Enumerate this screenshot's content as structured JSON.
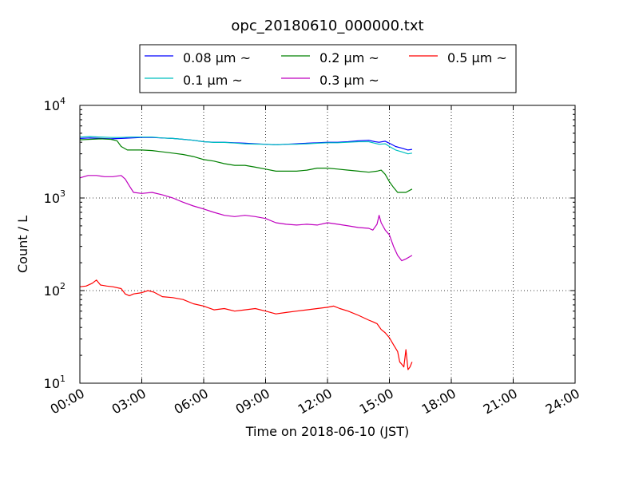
{
  "chart_data": {
    "type": "line",
    "title": "opc_20180610_000000.txt",
    "xlabel": "Time on 2018-06-10 (JST)",
    "ylabel": "Count / L",
    "x_unit": "hours",
    "xlim": [
      0,
      24
    ],
    "ylim": [
      10,
      10000
    ],
    "y_scale": "log",
    "grid": true,
    "legend_position": "top-center, above plot",
    "x_tick_labels": [
      "00:00",
      "03:00",
      "06:00",
      "09:00",
      "12:00",
      "15:00",
      "18:00",
      "21:00",
      "24:00"
    ],
    "y_tick_labels": [
      {
        "base": "10",
        "exp": "1"
      },
      {
        "base": "10",
        "exp": "2"
      },
      {
        "base": "10",
        "exp": "3"
      },
      {
        "base": "10",
        "exp": "4"
      }
    ],
    "series": [
      {
        "name": "0.08 μm ~",
        "color": "#0000ff",
        "x": [
          0.0,
          0.5,
          1.0,
          1.5,
          2.0,
          2.5,
          3.0,
          3.5,
          4.0,
          4.5,
          5.0,
          5.5,
          6.0,
          6.5,
          7.0,
          7.5,
          8.0,
          8.5,
          9.0,
          9.5,
          10.0,
          10.5,
          11.0,
          11.5,
          12.0,
          12.5,
          13.0,
          13.5,
          14.0,
          14.3,
          14.5,
          14.8,
          15.0,
          15.3,
          15.6,
          15.9,
          16.1
        ],
        "y": [
          4400,
          4450,
          4400,
          4350,
          4400,
          4450,
          4500,
          4500,
          4450,
          4400,
          4300,
          4200,
          4050,
          4000,
          4000,
          3950,
          3900,
          3850,
          3800,
          3750,
          3800,
          3850,
          3900,
          3950,
          4000,
          4000,
          4050,
          4150,
          4200,
          4050,
          4000,
          4100,
          3900,
          3600,
          3450,
          3300,
          3350
        ]
      },
      {
        "name": "0.1 μm ~",
        "color": "#00bfbf",
        "x": [
          0.0,
          0.5,
          1.0,
          1.5,
          2.0,
          2.5,
          3.0,
          3.5,
          4.0,
          4.5,
          5.0,
          5.5,
          6.0,
          6.5,
          7.0,
          7.5,
          8.0,
          8.5,
          9.0,
          9.5,
          10.0,
          10.5,
          11.0,
          11.5,
          12.0,
          12.5,
          13.0,
          13.5,
          14.0,
          14.3,
          14.5,
          14.8,
          15.0,
          15.3,
          15.6,
          15.9,
          16.1
        ],
        "y": [
          4550,
          4600,
          4550,
          4500,
          4500,
          4550,
          4550,
          4550,
          4450,
          4400,
          4300,
          4200,
          4050,
          3980,
          3980,
          3920,
          3850,
          3820,
          3800,
          3750,
          3800,
          3800,
          3850,
          3900,
          3950,
          3950,
          4000,
          4050,
          4050,
          3900,
          3800,
          3850,
          3600,
          3300,
          3150,
          3000,
          3050
        ]
      },
      {
        "name": "0.2 μm ~",
        "color": "#008000",
        "x": [
          0.0,
          0.5,
          1.0,
          1.5,
          1.8,
          2.0,
          2.3,
          2.6,
          3.0,
          3.5,
          4.0,
          4.5,
          5.0,
          5.5,
          6.0,
          6.5,
          7.0,
          7.5,
          8.0,
          8.5,
          9.0,
          9.5,
          10.0,
          10.5,
          11.0,
          11.5,
          12.0,
          12.5,
          13.0,
          13.5,
          14.0,
          14.4,
          14.6,
          14.8,
          15.0,
          15.2,
          15.4,
          15.6,
          15.8,
          16.1
        ],
        "y": [
          4250,
          4300,
          4350,
          4300,
          4150,
          3600,
          3300,
          3300,
          3300,
          3250,
          3150,
          3050,
          2950,
          2800,
          2600,
          2500,
          2350,
          2250,
          2250,
          2150,
          2050,
          1950,
          1950,
          1950,
          2000,
          2100,
          2100,
          2050,
          2000,
          1950,
          1900,
          1950,
          2000,
          1800,
          1500,
          1300,
          1150,
          1150,
          1150,
          1250
        ]
      },
      {
        "name": "0.3 μm ~",
        "color": "#bf00bf",
        "x": [
          0.0,
          0.4,
          0.8,
          1.2,
          1.6,
          2.0,
          2.2,
          2.4,
          2.6,
          3.0,
          3.5,
          4.0,
          4.5,
          5.0,
          5.5,
          6.0,
          6.5,
          7.0,
          7.5,
          8.0,
          8.5,
          9.0,
          9.5,
          10.0,
          10.5,
          11.0,
          11.5,
          12.0,
          12.5,
          13.0,
          13.5,
          14.0,
          14.2,
          14.4,
          14.5,
          14.6,
          14.8,
          15.0,
          15.2,
          15.4,
          15.6,
          15.8,
          16.1
        ],
        "y": [
          1650,
          1750,
          1750,
          1700,
          1700,
          1750,
          1600,
          1350,
          1150,
          1120,
          1150,
          1080,
          1000,
          900,
          820,
          760,
          700,
          650,
          630,
          650,
          630,
          600,
          540,
          520,
          510,
          520,
          510,
          540,
          520,
          500,
          480,
          470,
          450,
          520,
          650,
          540,
          450,
          400,
          300,
          240,
          210,
          220,
          240
        ]
      },
      {
        "name": "0.5 μm ~",
        "color": "#ff0000",
        "x": [
          0.0,
          0.3,
          0.6,
          0.8,
          1.0,
          1.3,
          1.6,
          2.0,
          2.2,
          2.4,
          2.6,
          3.0,
          3.3,
          3.6,
          4.0,
          4.5,
          5.0,
          5.5,
          6.0,
          6.5,
          7.0,
          7.5,
          8.0,
          8.5,
          9.0,
          9.5,
          10.0,
          10.5,
          11.0,
          11.5,
          12.0,
          12.3,
          12.6,
          13.0,
          13.5,
          14.0,
          14.2,
          14.4,
          14.6,
          14.8,
          15.0,
          15.2,
          15.4,
          15.5,
          15.6,
          15.7,
          15.8,
          15.9,
          16.0,
          16.1
        ],
        "y": [
          110,
          112,
          120,
          130,
          115,
          112,
          110,
          105,
          92,
          88,
          92,
          95,
          100,
          96,
          86,
          84,
          80,
          72,
          68,
          62,
          64,
          60,
          62,
          64,
          60,
          56,
          58,
          60,
          62,
          64,
          66,
          68,
          64,
          60,
          54,
          48,
          46,
          44,
          38,
          35,
          31,
          26,
          22,
          17,
          16,
          15,
          23,
          14,
          15,
          17
        ]
      }
    ]
  }
}
